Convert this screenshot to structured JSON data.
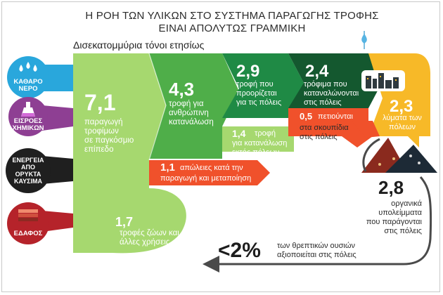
{
  "title_line1": "Η ΡΟΗ ΤΩΝ ΥΛΙΚΩΝ ΣΤΟ ΣΥΣΤΗΜΑ ΠΑΡΑΓΩΓΗΣ ΤΡΟΦΗΣ",
  "title_line2": "ΕΙΝΑΙ ΑΠΟΛΥΤΩΣ ΓΡΑΜΜΙΚΗ",
  "unit_label": "Δισεκατομμύρια τόνοι ετησίως",
  "inputs": [
    {
      "label": "ΚΑΘΑΡΟ\nΝΕΡΟ",
      "icon": "water-drops-icon",
      "color": "#29a7dc"
    },
    {
      "label": "ΕΙΣΡΟΕΣ\nΧΗΜΙΚΩΝ",
      "icon": "flask-icon",
      "color": "#8e3f93"
    },
    {
      "label": "ΕΝΕΡΓΕΙΑ\nΑΠΟ\nΟΡΥΚΤΑ\nΚΑΥΣΙΜΑ",
      "icon": "fuel-icon",
      "color": "#1f1f1f"
    },
    {
      "label": "ΕΔΑΦΟΣ",
      "icon": "soil-icon",
      "color": "#b5232a"
    }
  ],
  "flows": {
    "global_production": {
      "value": "7,1",
      "label": "παραγωγή\nτροφίμων\nσε παγκόσμιο\nεπίπεδο"
    },
    "human_food": {
      "value": "4,3",
      "label": "τροφή για\nανθρώπινη\nκατανάλωση"
    },
    "for_cities": {
      "value": "2,9",
      "label": "τροφή που\nπροορίζεται\nγια τις πόλεις"
    },
    "consumed_cities": {
      "value": "2,4",
      "label": "τρόφιμα που\nκαταναλώνονται\nστις πόλεις"
    },
    "city_waste_water": {
      "value": "2,3",
      "label": "λύματα των\nπόλεων"
    },
    "wasted_food": {
      "value": "0,5",
      "label_a": "πετιούνται",
      "label_b": "στα σκουπίδια\nστις πόλεις"
    },
    "outside_cities": {
      "value": "1,4",
      "label_a": "τροφή",
      "label_b": "για κατανάλωση\nεκτός πόλεων"
    },
    "losses": {
      "value": "1,1",
      "label_a": "απώλειες κατά την",
      "label_b": "παραγωγή και μεταποίηση"
    },
    "animal_feed": {
      "value": "1,7",
      "label": "τροφές ζώων και\nάλλες χρήσεις"
    },
    "organic_residues": {
      "value": "2,8",
      "label": "οργανικά\nυπολείμματα\nπου παράγονται\nστις πόλεις"
    }
  },
  "nutrients": {
    "value": "<2%",
    "label": "των θρεπτικών ουσιών\nαξιοποιείται στις πόλεις"
  },
  "colors": {
    "light_green": "#a6d86f",
    "mid_green": "#4fae49",
    "dark_green": "#1f8a45",
    "darkest_green": "#14582f",
    "yellow": "#f7b928",
    "orange_red": "#f0512b",
    "grey_text": "#2b2b2b"
  }
}
